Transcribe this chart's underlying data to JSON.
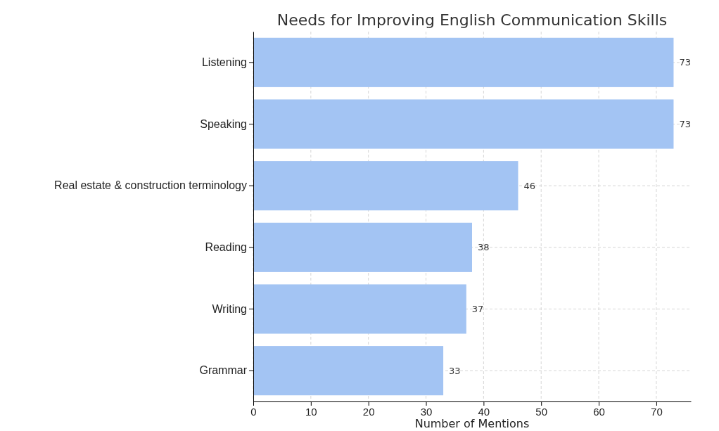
{
  "chart_data": {
    "type": "bar",
    "orientation": "horizontal",
    "title": "Needs for Improving English Communication Skills",
    "xlabel": "Number of Mentions",
    "categories": [
      "Listening",
      "Speaking",
      "Real estate & construction terminology",
      "Reading",
      "Writing",
      "Grammar"
    ],
    "values": [
      73,
      73,
      46,
      38,
      37,
      33
    ],
    "color": "#a3c4f3",
    "data_labels": true,
    "grid": true,
    "xlim": [
      0,
      76
    ],
    "xticks": [
      0,
      10,
      20,
      30,
      40,
      50,
      60,
      70
    ]
  }
}
